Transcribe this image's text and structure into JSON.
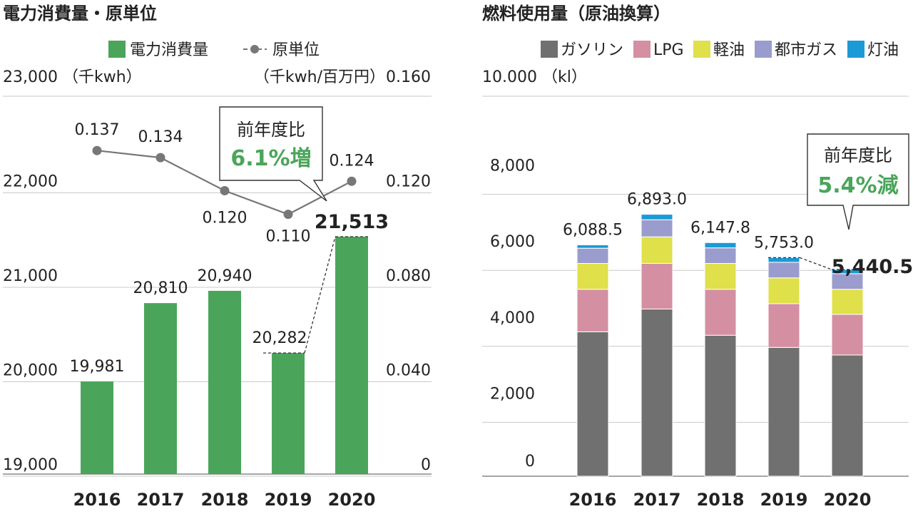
{
  "chart_data": [
    {
      "type": "bar+line",
      "title": "電力消費量・原単位",
      "legend": [
        {
          "label": "電力消費量",
          "kind": "bar",
          "color": "#4aa55a"
        },
        {
          "label": "原単位",
          "kind": "line",
          "color": "#777777"
        }
      ],
      "left_axis": {
        "unit": "（千kwh）",
        "ylim": [
          19000,
          23000
        ],
        "ticks": [
          "19,000",
          "20,000",
          "21,000",
          "22,000",
          "23,000"
        ]
      },
      "right_axis": {
        "unit": "（千kwh/百万円）",
        "ylim": [
          0,
          0.16
        ],
        "ticks": [
          "0",
          "0.040",
          "0.080",
          "0.120",
          "0.160"
        ]
      },
      "categories": [
        "2016",
        "2017",
        "2018",
        "2019",
        "2020"
      ],
      "series": [
        {
          "name": "電力消費量",
          "values": [
            19981,
            20810,
            20940,
            20282,
            21513
          ],
          "labels": [
            "19,981",
            "20,810",
            "20,940",
            "20,282",
            "21,513"
          ]
        },
        {
          "name": "原単位",
          "values": [
            0.137,
            0.134,
            0.12,
            0.11,
            0.124
          ],
          "labels": [
            "0.137",
            "0.134",
            "0.120",
            "0.110",
            "0.124"
          ]
        }
      ],
      "callout": {
        "line1": "前年度比",
        "line2": "6.1%増",
        "color": "#4aa55a"
      }
    },
    {
      "type": "stacked-bar",
      "title": "燃料使用量（原油換算）",
      "legend_items": [
        {
          "label": "ガソリン",
          "color": "#707070"
        },
        {
          "label": "LPG",
          "color": "#d48fa2"
        },
        {
          "label": "軽油",
          "color": "#dfe04a"
        },
        {
          "label": "都市ガス",
          "color": "#9a9ccd"
        },
        {
          "label": "灯油",
          "color": "#1b9ad6"
        }
      ],
      "y_axis": {
        "unit": "（kl）",
        "top_label": "10.000",
        "ylim": [
          0,
          10000
        ],
        "ticks": [
          "0",
          "2,000",
          "4,000",
          "6,000",
          "8,000"
        ]
      },
      "categories": [
        "2016",
        "2017",
        "2018",
        "2019",
        "2020"
      ],
      "series": [
        {
          "name": "ガソリン",
          "values": [
            3800,
            4400,
            3710,
            3390,
            3190
          ]
        },
        {
          "name": "LPG",
          "values": [
            1120,
            1200,
            1210,
            1150,
            1070
          ]
        },
        {
          "name": "軽油",
          "values": [
            680,
            700,
            680,
            680,
            660
          ]
        },
        {
          "name": "都市ガス",
          "values": [
            400,
            450,
            410,
            410,
            410
          ]
        },
        {
          "name": "灯油",
          "values": [
            88.5,
            143.0,
            137.8,
            123.0,
            110.5
          ]
        }
      ],
      "totals": [
        "6,088.5",
        "6,893.0",
        "6,147.8",
        "5,753.0",
        "5,440.5"
      ],
      "callout": {
        "line1": "前年度比",
        "line2": "5.4%減",
        "color": "#4aa55a"
      }
    }
  ]
}
